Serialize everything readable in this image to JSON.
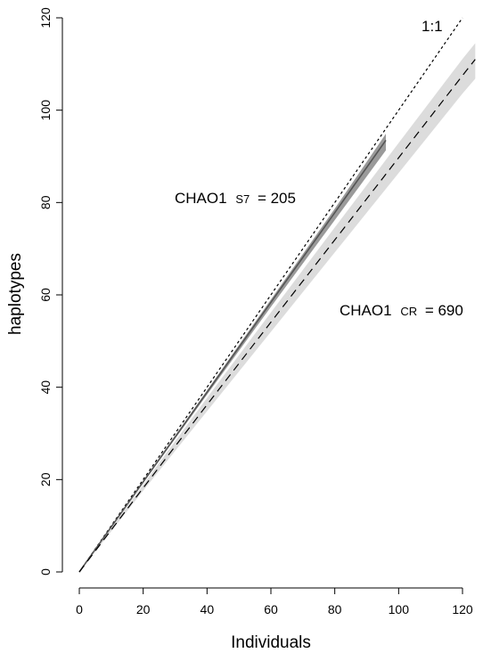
{
  "chart_data": {
    "type": "line",
    "title": "",
    "xlabel": "Individuals",
    "ylabel": "haplotypes",
    "xlim": [
      0,
      120
    ],
    "ylim": [
      0,
      120
    ],
    "x_ticks": [
      0,
      20,
      40,
      60,
      80,
      100,
      120
    ],
    "y_ticks": [
      0,
      20,
      40,
      60,
      80,
      100,
      120
    ],
    "x_tick_labels": [
      "0",
      "20",
      "40",
      "60",
      "80",
      "100",
      "120"
    ],
    "y_tick_labels": [
      "0",
      "20",
      "40",
      "60",
      "80",
      "100",
      "120"
    ],
    "grid": false,
    "legend": "none",
    "series": [
      {
        "line_style": "dotted",
        "color": "#000000",
        "x": [
          0,
          120
        ],
        "y": [
          0,
          120
        ]
      },
      {
        "line_style": "solid",
        "color": "#555555",
        "band_color": "#9a9a9a",
        "x": [
          0,
          20,
          40,
          60,
          80,
          96
        ],
        "y": [
          0,
          19.5,
          38.9,
          58.4,
          77.8,
          93.5
        ],
        "lower": [
          0,
          19.3,
          38.4,
          57.4,
          76.2,
          91.3
        ],
        "upper": [
          0,
          19.8,
          39.3,
          59.0,
          78.7,
          94.9
        ]
      },
      {
        "line_style": "dashed",
        "color": "#000000",
        "band_color": "#dcdcdc",
        "x": [
          0,
          20,
          40,
          60,
          80,
          100,
          120,
          124
        ],
        "y": [
          0,
          18.2,
          36.2,
          54.1,
          71.9,
          89.7,
          107.5,
          111.0
        ],
        "lower": [
          0,
          17.6,
          34.8,
          52.0,
          69.2,
          86.4,
          103.6,
          106.8
        ],
        "upper": [
          0,
          18.9,
          37.7,
          56.2,
          74.6,
          92.9,
          111.1,
          114.5
        ]
      }
    ],
    "annotations": [
      {
        "main": "1:1",
        "sub": "",
        "rest": ""
      },
      {
        "main": "CHAO1",
        "sub": "S7",
        "rest": "= 205"
      },
      {
        "main": "CHAO1",
        "sub": "CR",
        "rest": "= 690"
      }
    ]
  }
}
